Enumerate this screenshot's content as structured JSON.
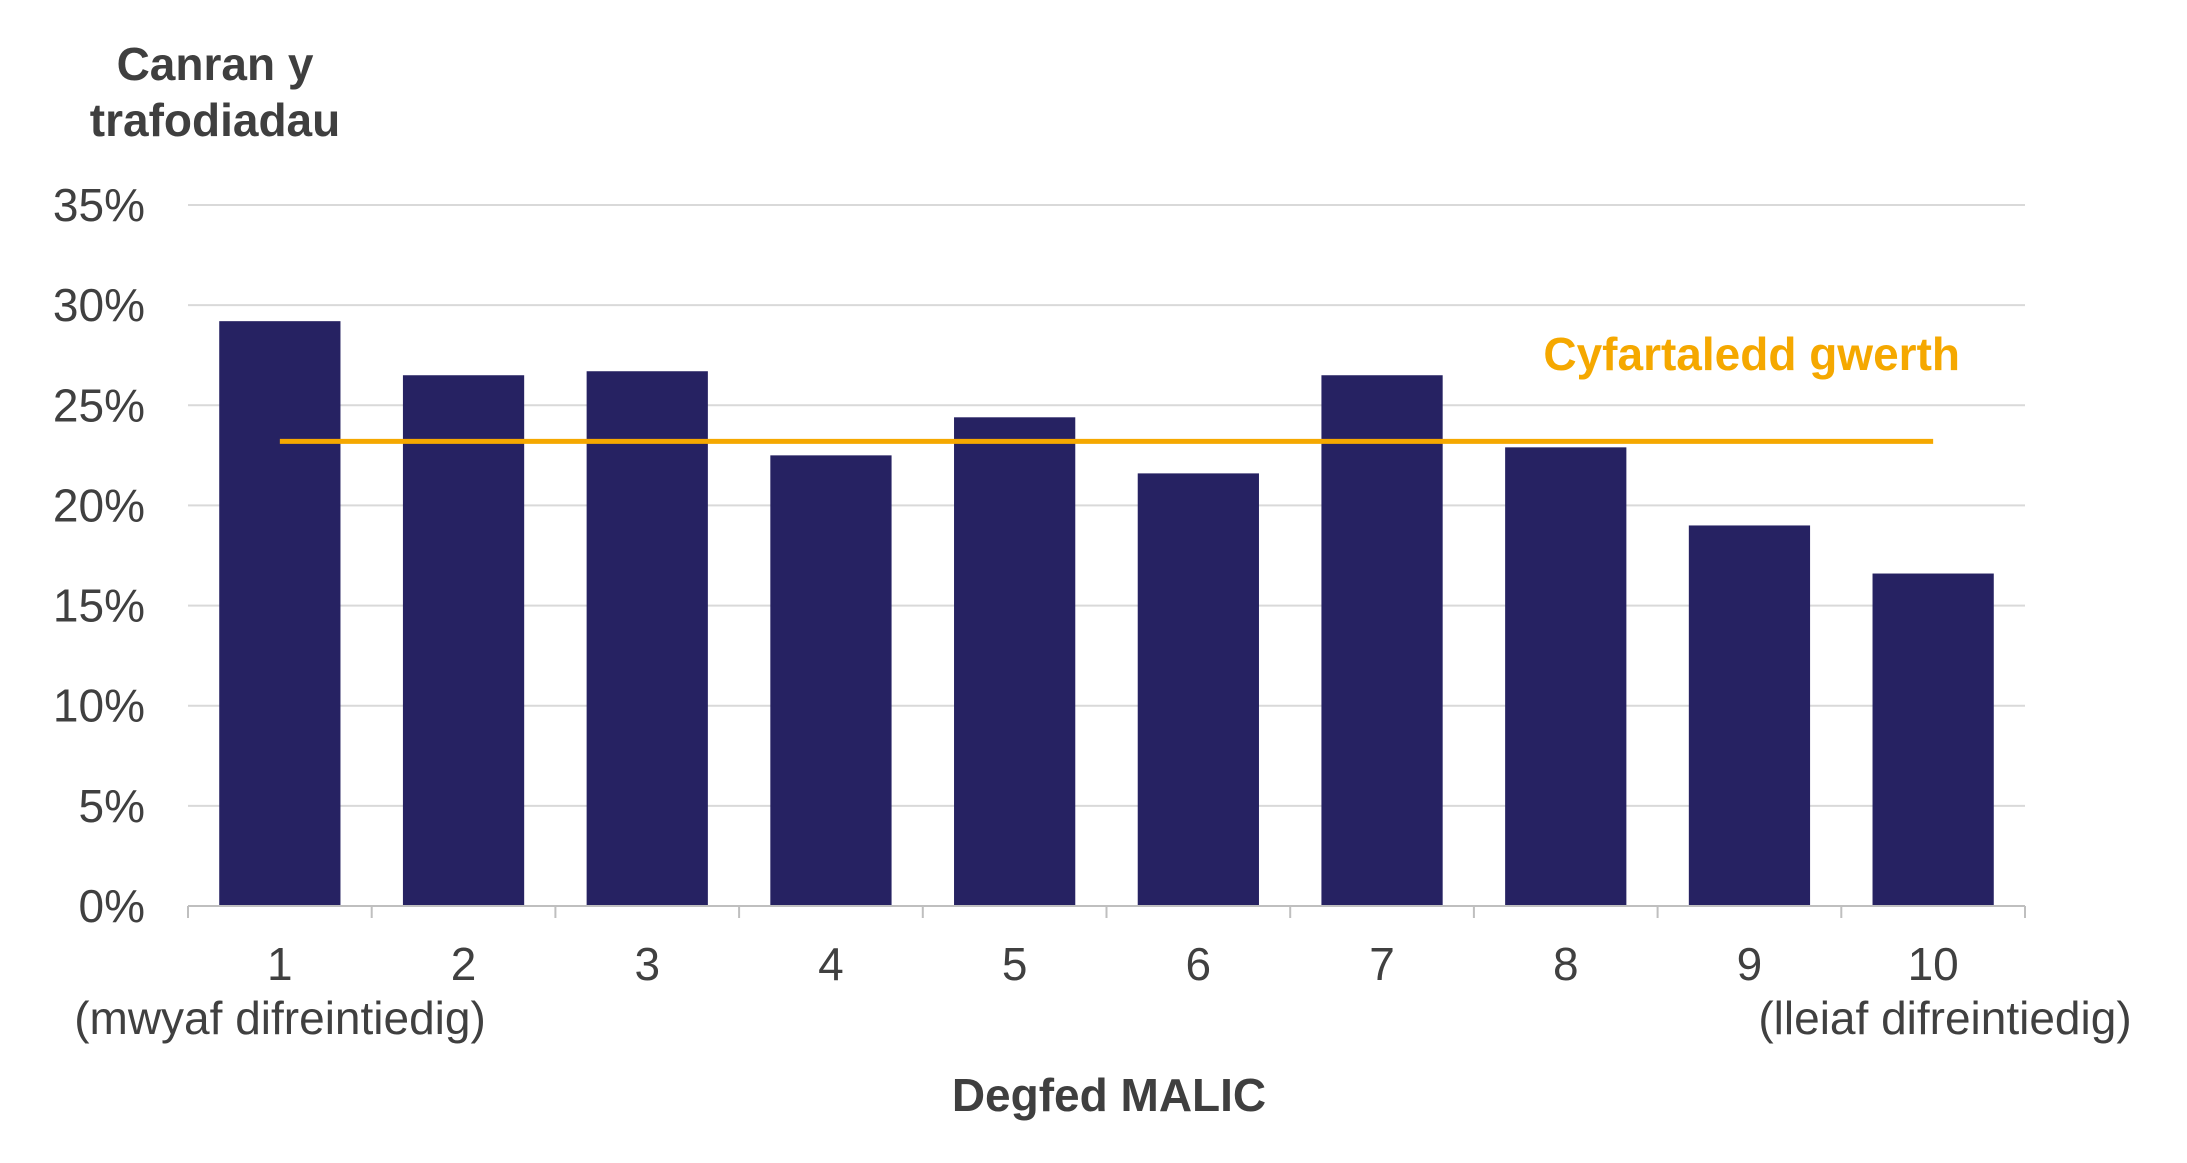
{
  "chart_data": {
    "type": "bar",
    "ylabel": [
      "Canran y",
      "trafodiadau"
    ],
    "xlabel": "Degfed MALIC",
    "categories": [
      "1",
      "2",
      "3",
      "4",
      "5",
      "6",
      "7",
      "8",
      "9",
      "10"
    ],
    "category_sublabels": {
      "first": "(mwyaf difreintiedig)",
      "last": "(lleiaf difreintiedig)"
    },
    "values": [
      29.2,
      26.5,
      26.7,
      22.5,
      24.4,
      21.6,
      26.5,
      22.9,
      19.0,
      16.6
    ],
    "ylim": [
      0,
      35
    ],
    "yticks": [
      0,
      5,
      10,
      15,
      20,
      25,
      30,
      35
    ],
    "ytick_labels": [
      "0%",
      "5%",
      "10%",
      "15%",
      "20%",
      "25%",
      "30%",
      "35%"
    ],
    "grid": true,
    "average": {
      "label": "Cyfartaledd gwerth",
      "value": 23.2
    },
    "colors": {
      "bar": "#262262",
      "average": "#f5a800",
      "grid": "#d9d9d9",
      "axis": "#bfbfbf"
    }
  }
}
